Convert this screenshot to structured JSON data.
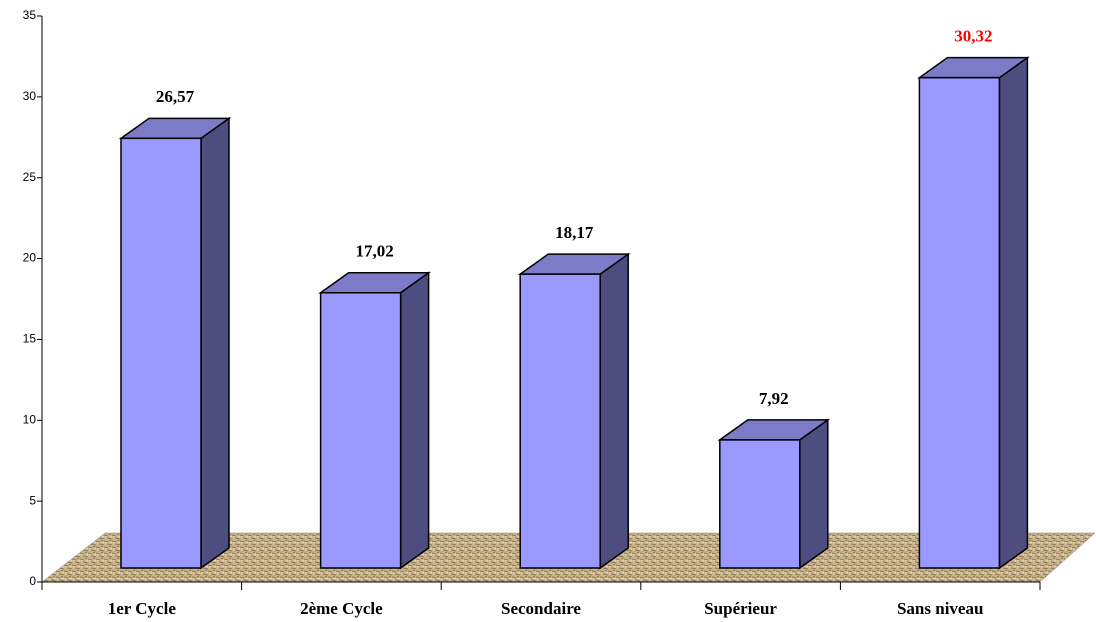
{
  "chart_data": {
    "type": "bar3d",
    "categories": [
      "1er Cycle",
      "2ème Cycle",
      "Secondaire",
      "Supérieur",
      "Sans niveau"
    ],
    "values": [
      26.57,
      17.02,
      18.17,
      7.92,
      30.32
    ],
    "value_labels": [
      "26,57",
      "17,02",
      "18,17",
      "7,92",
      "30,32"
    ],
    "value_label_colors": [
      "#000000",
      "#000000",
      "#000000",
      "#000000",
      "#ff0000"
    ],
    "color": "#9999ff",
    "side_color": "#4d4d80",
    "top_color": "#7b7bc8",
    "floor_color": "#c9b48c",
    "ylim": [
      0,
      35
    ],
    "yticks": [
      0,
      5,
      10,
      15,
      20,
      25,
      30,
      35
    ]
  }
}
